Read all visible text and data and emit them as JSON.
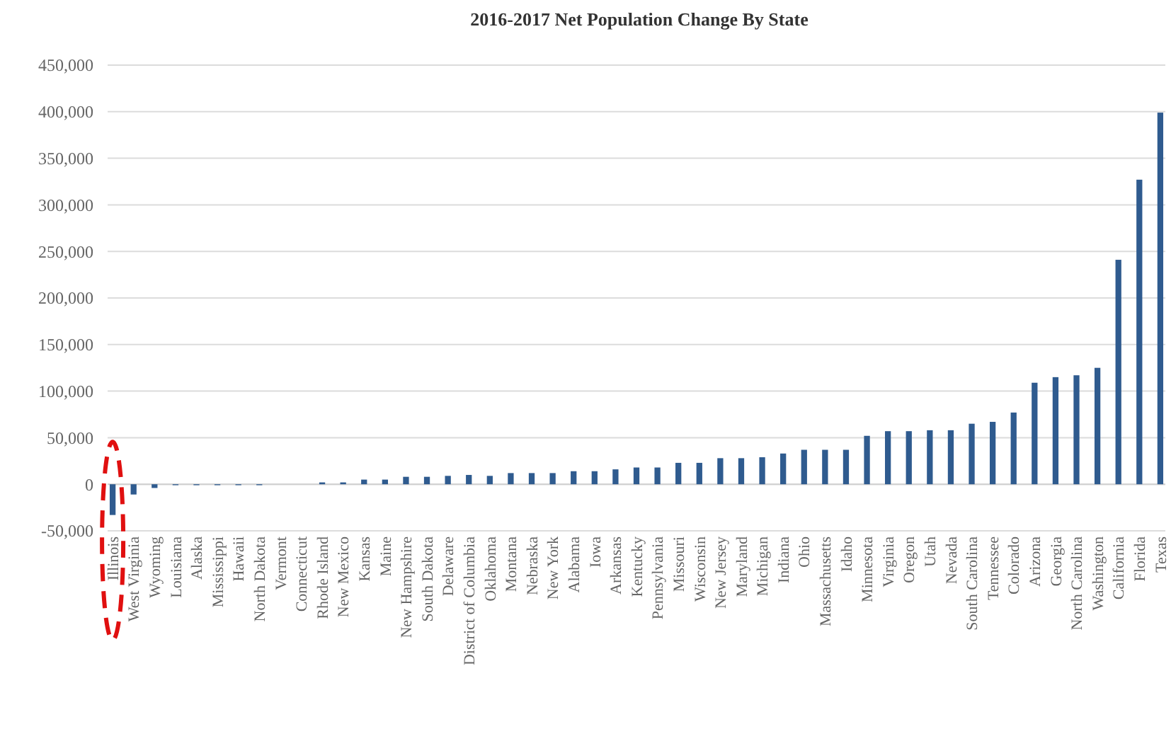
{
  "chart_data": {
    "type": "bar",
    "title": "2016-2017 Net Population Change By State",
    "categories": [
      "Illinois",
      "West Virginia",
      "Wyoming",
      "Louisiana",
      "Alaska",
      "Mississippi",
      "Hawaii",
      "North Dakota",
      "Vermont",
      "Connecticut",
      "Rhode Island",
      "New Mexico",
      "Kansas",
      "Maine",
      "New Hampshire",
      "South Dakota",
      "Delaware",
      "District of Columbia",
      "Oklahoma",
      "Montana",
      "Nebraska",
      "New York",
      "Alabama",
      "Iowa",
      "Arkansas",
      "Kentucky",
      "Pennsylvania",
      "Missouri",
      "Wisconsin",
      "New Jersey",
      "Maryland",
      "Michigan",
      "Indiana",
      "Ohio",
      "Massachusetts",
      "Idaho",
      "Minnesota",
      "Virginia",
      "Oregon",
      "Utah",
      "Nevada",
      "South Carolina",
      "Tennessee",
      "Colorado",
      "Arizona",
      "Georgia",
      "North Carolina",
      "Washington",
      "California",
      "Florida",
      "Texas"
    ],
    "values": [
      -33000,
      -11000,
      -4000,
      -1000,
      -1000,
      -1000,
      -1000,
      -1000,
      0,
      0,
      2000,
      2000,
      5000,
      5000,
      8000,
      8000,
      9000,
      10000,
      9000,
      12000,
      12000,
      12000,
      14000,
      14000,
      16000,
      18000,
      18000,
      23000,
      23000,
      28000,
      28000,
      29000,
      33000,
      37000,
      37000,
      37000,
      52000,
      57000,
      57000,
      58000,
      58000,
      65000,
      67000,
      77000,
      109000,
      115000,
      117000,
      125000,
      241000,
      327000,
      399000
    ],
    "color": "#2f5b8f",
    "ylim": [
      -50000,
      450000
    ],
    "yticks": [
      {
        "value": -50000,
        "label": "-50,000"
      },
      0,
      {
        "value": 50000,
        "label": "50,000"
      },
      {
        "value": 100000,
        "label": "100,000"
      },
      {
        "value": 150000,
        "label": "150,000"
      },
      {
        "value": 200000,
        "label": "200,000"
      },
      {
        "value": 250000,
        "label": "250,000"
      },
      {
        "value": 300000,
        "label": "300,000"
      },
      {
        "value": 350000,
        "label": "350,000"
      },
      {
        "value": 400000,
        "label": "400,000"
      },
      {
        "value": 450000,
        "label": "450,000"
      }
    ],
    "grid": "y"
  }
}
